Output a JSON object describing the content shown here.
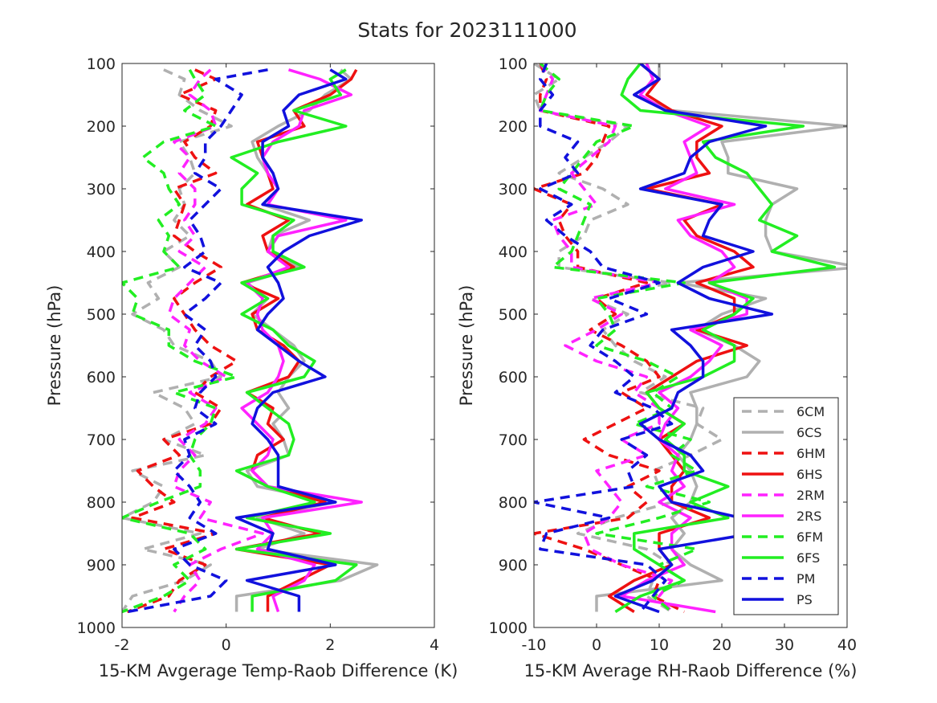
{
  "figure": {
    "title": "Stats for 2023111000"
  },
  "colors": {
    "6CM": "#b0b0b0",
    "6CS": "#b0b0b0",
    "6HM": "#ee1111",
    "6HS": "#ee1111",
    "2RM": "#ff22ff",
    "2RS": "#ff22ff",
    "6FM": "#22ee22",
    "6FS": "#22ee22",
    "PM": "#1111dd",
    "PS": "#1111dd"
  },
  "legend": {
    "placement": "lower-right of right panel",
    "entries": [
      {
        "name": "6CM",
        "dashed": true
      },
      {
        "name": "6CS",
        "dashed": false
      },
      {
        "name": "6HM",
        "dashed": true
      },
      {
        "name": "6HS",
        "dashed": false
      },
      {
        "name": "2RM",
        "dashed": true
      },
      {
        "name": "2RS",
        "dashed": false
      },
      {
        "name": "6FM",
        "dashed": true
      },
      {
        "name": "6FS",
        "dashed": false
      },
      {
        "name": "PM",
        "dashed": true
      },
      {
        "name": "PS",
        "dashed": false
      }
    ]
  },
  "chart_data": [
    {
      "type": "line",
      "xlabel": "15-KM Avgerage Temp-Raob Difference (K)",
      "ylabel": "Pressure (hPa)",
      "xlim": [
        -2,
        4
      ],
      "ylim": [
        100,
        1000
      ],
      "y_reversed": true,
      "grid": false,
      "xticks": [
        "-2",
        "0",
        "2",
        "4"
      ],
      "yticks": [
        "100",
        "200",
        "300",
        "400",
        "500",
        "600",
        "700",
        "800",
        "900",
        "1000"
      ],
      "y": [
        110,
        125,
        150,
        175,
        200,
        225,
        250,
        275,
        300,
        325,
        350,
        375,
        400,
        425,
        450,
        475,
        500,
        525,
        550,
        575,
        600,
        625,
        650,
        675,
        700,
        725,
        750,
        775,
        800,
        825,
        850,
        875,
        900,
        925,
        950,
        975
      ],
      "series": [
        {
          "name": "6CM",
          "values": [
            -1.2,
            -0.8,
            -0.9,
            -0.5,
            0.1,
            -0.9,
            -0.7,
            -0.6,
            -0.9,
            -0.8,
            -1.0,
            -0.7,
            -1.2,
            -0.9,
            -1.5,
            -1.3,
            -1.8,
            -1.2,
            -1.0,
            -0.3,
            -0.1,
            -1.4,
            -0.8,
            -0.6,
            -1.2,
            -0.4,
            -1.8,
            -1.2,
            -1.4,
            -2.0,
            -0.5,
            -1.6,
            -0.3,
            -0.8,
            -1.8,
            -2.0
          ]
        },
        {
          "name": "6CS",
          "values": [
            2.2,
            2.4,
            1.9,
            1.6,
            1.0,
            0.5,
            0.6,
            0.8,
            1.0,
            0.7,
            1.6,
            0.9,
            0.8,
            1.4,
            0.4,
            0.8,
            0.5,
            0.9,
            1.3,
            1.5,
            1.2,
            1.0,
            1.2,
            0.9,
            1.1,
            1.2,
            0.4,
            0.6,
            2.1,
            0.6,
            1.5,
            0.6,
            2.9,
            2.2,
            0.2,
            0.2
          ]
        },
        {
          "name": "6HM",
          "values": [
            -0.6,
            -0.2,
            -0.9,
            -0.2,
            -0.3,
            -0.8,
            -0.6,
            -0.2,
            -1.0,
            -0.8,
            -0.9,
            -1.0,
            -0.6,
            -0.1,
            -0.6,
            -1.0,
            -0.8,
            -0.6,
            -0.3,
            0.2,
            -0.3,
            -0.6,
            -0.1,
            -0.3,
            -1.2,
            -0.9,
            -1.7,
            -1.4,
            -1.0,
            -1.8,
            -0.2,
            -1.2,
            -0.4,
            -0.9,
            -1.1,
            -1.9
          ]
        },
        {
          "name": "6HS",
          "values": [
            2.5,
            2.4,
            2.0,
            1.3,
            1.5,
            0.6,
            0.7,
            0.8,
            0.9,
            0.4,
            1.2,
            0.7,
            0.8,
            1.3,
            0.3,
            1.0,
            0.5,
            0.6,
            1.1,
            1.4,
            1.2,
            0.4,
            0.9,
            0.8,
            1.1,
            0.6,
            0.5,
            0.8,
            1.9,
            0.7,
            1.8,
            0.2,
            2.0,
            1.4,
            0.8,
            0.8
          ]
        },
        {
          "name": "2RM",
          "values": [
            -0.3,
            -0.5,
            -0.7,
            -0.3,
            -0.2,
            -1.0,
            -0.7,
            -0.9,
            -0.6,
            -0.6,
            -0.8,
            -0.6,
            -0.9,
            -0.4,
            -0.7,
            -1.0,
            -1.1,
            -0.7,
            -0.8,
            -0.5,
            0.0,
            -0.7,
            -0.2,
            -0.4,
            -0.9,
            -0.6,
            -0.9,
            -1.0,
            -0.3,
            -0.5,
            0.7,
            -0.1,
            -0.7,
            -0.5,
            -0.8,
            -1.0
          ]
        },
        {
          "name": "2RS",
          "values": [
            1.2,
            1.8,
            2.4,
            1.5,
            1.4,
            0.9,
            0.7,
            0.8,
            1.0,
            0.8,
            2.3,
            1.0,
            0.8,
            1.2,
            0.4,
            0.7,
            0.6,
            0.7,
            1.0,
            1.1,
            1.0,
            0.8,
            0.3,
            0.6,
            0.9,
            0.8,
            0.5,
            0.8,
            2.6,
            0.7,
            0.9,
            0.6,
            1.7,
            1.5,
            0.9,
            1.0
          ]
        },
        {
          "name": "6FM",
          "values": [
            -0.7,
            -0.6,
            -0.4,
            -0.8,
            -0.2,
            -1.2,
            -1.6,
            -1.2,
            -1.1,
            -0.9,
            -1.3,
            -1.1,
            -1.2,
            -0.9,
            -2.0,
            -1.7,
            -1.8,
            -1.1,
            -1.1,
            -0.6,
            0.2,
            -1.0,
            -0.2,
            -0.3,
            -0.6,
            -0.7,
            -0.5,
            -0.5,
            -1.3,
            -2.0,
            -0.7,
            -0.4,
            -1.0,
            -0.7,
            -1.2,
            -2.0
          ]
        },
        {
          "name": "6FS",
          "values": [
            2.3,
            2.0,
            2.2,
            1.3,
            2.3,
            1.0,
            0.1,
            0.6,
            0.3,
            0.3,
            1.3,
            0.9,
            0.9,
            1.5,
            0.3,
            0.8,
            0.3,
            0.9,
            1.2,
            1.7,
            1.5,
            0.4,
            0.8,
            1.2,
            1.3,
            1.2,
            0.2,
            0.8,
            1.7,
            0.4,
            2.0,
            0.2,
            2.5,
            2.1,
            0.5,
            0.5
          ]
        },
        {
          "name": "PM",
          "values": [
            0.8,
            -0.2,
            0.3,
            0.1,
            -0.1,
            -0.4,
            -0.4,
            -0.6,
            -0.1,
            -0.4,
            -0.7,
            -0.5,
            -0.4,
            -0.8,
            -0.1,
            -0.4,
            -0.8,
            -0.4,
            -0.6,
            -0.3,
            -0.2,
            -0.5,
            -0.6,
            -0.2,
            -0.8,
            -0.7,
            -1.0,
            -0.7,
            -0.5,
            -0.7,
            -0.2,
            -1.0,
            -0.7,
            0.0,
            -0.3,
            -1.9
          ]
        },
        {
          "name": "PS",
          "values": [
            2.0,
            2.3,
            1.4,
            1.1,
            1.2,
            0.7,
            0.7,
            0.9,
            1.0,
            0.7,
            2.6,
            1.6,
            1.1,
            0.8,
            1.0,
            1.1,
            0.8,
            0.6,
            1.0,
            1.4,
            1.9,
            0.9,
            0.6,
            0.5,
            0.8,
            1.0,
            1.0,
            1.0,
            2.1,
            0.2,
            0.9,
            0.8,
            2.1,
            0.4,
            1.4,
            1.4
          ]
        }
      ]
    },
    {
      "type": "line",
      "xlabel": "15-KM Average RH-Raob Difference (%)",
      "ylabel": "Pressure (hPa)",
      "xlim": [
        -10,
        40
      ],
      "ylim": [
        100,
        1000
      ],
      "y_reversed": true,
      "grid": false,
      "xticks": [
        "-10",
        "0",
        "10",
        "20",
        "30",
        "40"
      ],
      "yticks": [
        "100",
        "200",
        "300",
        "400",
        "500",
        "600",
        "700",
        "800",
        "900",
        "1000"
      ],
      "y": [
        100,
        125,
        150,
        175,
        200,
        225,
        250,
        275,
        300,
        325,
        350,
        375,
        400,
        425,
        450,
        475,
        500,
        525,
        550,
        575,
        600,
        625,
        650,
        675,
        700,
        725,
        750,
        775,
        800,
        825,
        850,
        875,
        900,
        925,
        950,
        975
      ],
      "series": [
        {
          "name": "6CM",
          "values": [
            -10,
            -6,
            -10,
            -9,
            5,
            2,
            -2,
            -6,
            1,
            5,
            -1,
            -2,
            -6,
            -6,
            12,
            -1,
            5,
            1,
            3,
            6,
            11,
            7,
            17,
            16,
            20,
            15,
            9,
            10,
            12,
            3,
            -3,
            8,
            12,
            9,
            8,
            12
          ]
        },
        {
          "name": "6CS",
          "values": [
            10,
            10,
            6,
            12,
            40,
            20,
            21,
            21,
            32,
            28,
            27,
            27,
            28,
            42,
            13,
            27,
            20,
            16,
            22,
            26,
            24,
            15,
            16,
            16,
            15,
            13,
            15,
            16,
            15,
            12,
            14,
            12,
            15,
            20,
            0,
            0
          ]
        },
        {
          "name": "6HM",
          "values": [
            -9,
            -8,
            -9,
            -9,
            2,
            1,
            0,
            -2,
            -10,
            -4,
            -6,
            -5,
            -3,
            -3,
            8,
            0,
            3,
            -1,
            4,
            8,
            10,
            4,
            8,
            3,
            -2,
            2,
            10,
            5,
            8,
            5,
            -10,
            -2,
            4,
            10,
            9,
            14
          ]
        },
        {
          "name": "6HS",
          "values": [
            7,
            10,
            8,
            12,
            20,
            16,
            16,
            18,
            8,
            20,
            14,
            16,
            22,
            25,
            16,
            22,
            22,
            16,
            24,
            16,
            12,
            8,
            10,
            14,
            10,
            12,
            14,
            12,
            12,
            18,
            10,
            10,
            12,
            6,
            2,
            6
          ]
        },
        {
          "name": "2RM",
          "values": [
            -9,
            -7,
            -8,
            -9,
            3,
            2,
            -1,
            -4,
            -2,
            0,
            -7,
            -6,
            -4,
            -4,
            10,
            -1,
            4,
            0,
            -5,
            0,
            8,
            6,
            10,
            10,
            4,
            8,
            0,
            2,
            4,
            2,
            -2,
            -1,
            4,
            12,
            10,
            12
          ]
        },
        {
          "name": "2RS",
          "values": [
            8,
            9,
            7,
            11,
            18,
            14,
            15,
            16,
            11,
            22,
            13,
            15,
            20,
            22,
            18,
            24,
            24,
            15,
            20,
            18,
            15,
            10,
            13,
            11,
            10,
            13,
            12,
            14,
            10,
            15,
            12,
            12,
            14,
            8,
            4,
            19
          ]
        },
        {
          "name": "6FM",
          "values": [
            -9,
            -6,
            -8,
            -9,
            6,
            0,
            -2,
            -4,
            -6,
            -1,
            -2,
            -3,
            -4,
            -7,
            14,
            0,
            2,
            3,
            0,
            8,
            13,
            9,
            12,
            6,
            15,
            12,
            16,
            8,
            18,
            10,
            0,
            16,
            10,
            14,
            9,
            12
          ]
        },
        {
          "name": "6FS",
          "values": [
            7,
            5,
            4,
            7,
            33,
            17,
            19,
            24,
            26,
            28,
            26,
            32,
            28,
            38,
            18,
            25,
            22,
            17,
            22,
            22,
            17,
            8,
            10,
            14,
            11,
            14,
            14,
            21,
            15,
            21,
            6,
            6,
            10,
            14,
            7,
            3
          ]
        },
        {
          "name": "PM",
          "values": [
            -8,
            -9,
            -7,
            -9,
            -9,
            -3,
            -5,
            -3,
            -9,
            -4,
            -8,
            -5,
            -1,
            1,
            10,
            2,
            8,
            1,
            -1,
            3,
            6,
            3,
            9,
            12,
            4,
            8,
            5,
            6,
            -10,
            2,
            -8,
            -9,
            8,
            11,
            9,
            7
          ]
        },
        {
          "name": "PS",
          "values": [
            7,
            10,
            6,
            11,
            27,
            18,
            15,
            14,
            7,
            20,
            18,
            17,
            25,
            17,
            13,
            18,
            28,
            12,
            15,
            17,
            17,
            13,
            12,
            7,
            10,
            15,
            17,
            10,
            12,
            23,
            25,
            10,
            12,
            9,
            3,
            10
          ]
        }
      ]
    }
  ]
}
